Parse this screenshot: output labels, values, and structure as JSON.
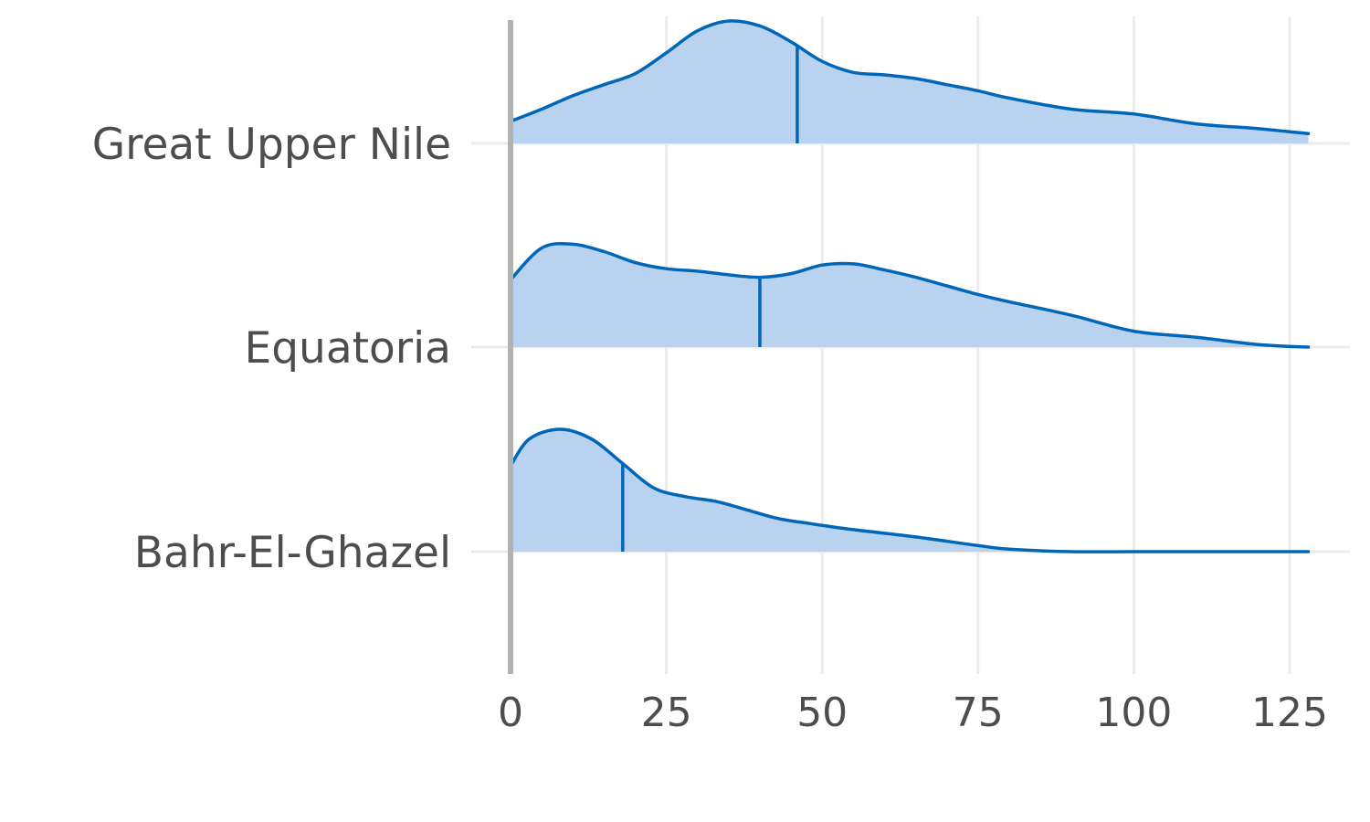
{
  "chart_data": {
    "type": "ridgeline",
    "title": "",
    "xlabel": "",
    "ylabel": "",
    "xlim": [
      0,
      128
    ],
    "x_ticks": [
      0,
      25,
      50,
      75,
      100,
      125
    ],
    "x_tick_labels": [
      "0",
      "25",
      "50",
      "75",
      "100",
      "125"
    ],
    "grid": true,
    "colors": {
      "line": "#0066b8",
      "fill": "#b8d2f0",
      "grid": "#ebebeb",
      "zero_line": "#b3b3b3",
      "text": "#4d4d4d"
    },
    "categories": [
      "Great Upper Nile",
      "Equatoria",
      "Bahr-El-Ghazel"
    ],
    "series": [
      {
        "name": "Great Upper Nile",
        "median": 46,
        "x": [
          0,
          5,
          10,
          15,
          20,
          25,
          30,
          35,
          40,
          45,
          50,
          55,
          60,
          65,
          70,
          75,
          80,
          90,
          100,
          110,
          120,
          128
        ],
        "density": [
          0.18,
          0.28,
          0.39,
          0.48,
          0.57,
          0.74,
          0.92,
          1.0,
          0.96,
          0.83,
          0.67,
          0.58,
          0.56,
          0.53,
          0.48,
          0.43,
          0.37,
          0.28,
          0.24,
          0.16,
          0.12,
          0.08
        ]
      },
      {
        "name": "Equatoria",
        "median": 40,
        "x": [
          0,
          5,
          10,
          15,
          20,
          25,
          30,
          35,
          40,
          45,
          50,
          55,
          60,
          65,
          70,
          75,
          80,
          90,
          100,
          110,
          120,
          128
        ],
        "density": [
          0.55,
          0.81,
          0.84,
          0.78,
          0.69,
          0.64,
          0.62,
          0.59,
          0.57,
          0.6,
          0.67,
          0.68,
          0.63,
          0.57,
          0.5,
          0.43,
          0.37,
          0.26,
          0.13,
          0.08,
          0.02,
          0.0
        ]
      },
      {
        "name": "Bahr-El-Ghazel",
        "median": 18,
        "x": [
          0,
          3,
          8,
          13,
          18,
          23,
          28,
          33,
          38,
          43,
          48,
          55,
          65,
          75,
          80,
          90,
          100,
          110,
          120,
          128
        ],
        "density": [
          0.7,
          0.92,
          1.0,
          0.92,
          0.72,
          0.52,
          0.45,
          0.41,
          0.34,
          0.27,
          0.23,
          0.18,
          0.12,
          0.05,
          0.02,
          0.0,
          0.0,
          0.0,
          0.0,
          0.0
        ]
      }
    ]
  }
}
